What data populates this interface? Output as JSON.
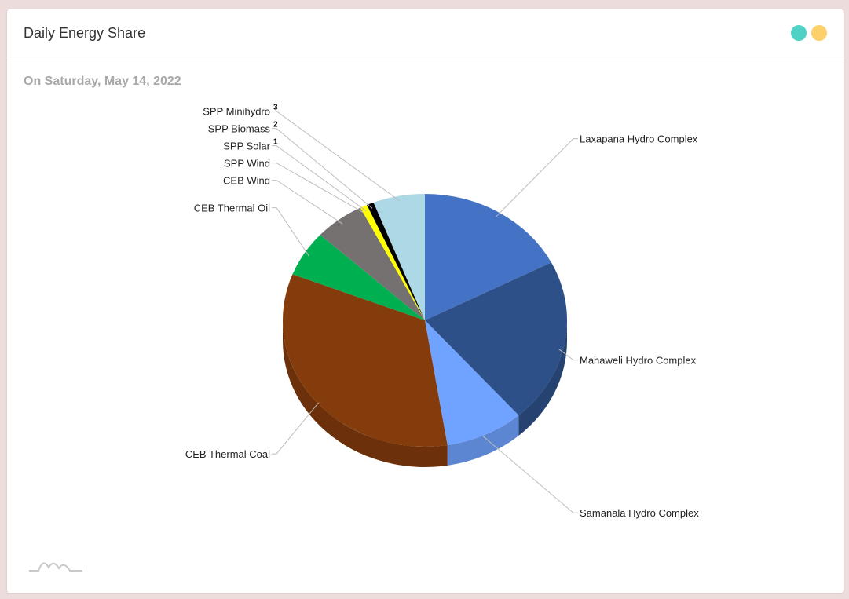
{
  "header": {
    "title": "Daily Energy Share",
    "dots": [
      {
        "name": "teal",
        "color": "#4fd1c5"
      },
      {
        "name": "amber",
        "color": "#fcd06b"
      }
    ]
  },
  "subtitle": "On Saturday, May 14, 2022",
  "logo_icon": "mountain-wave-logo-icon",
  "chart_data": {
    "type": "pie",
    "title": "",
    "start_angle_deg": 0,
    "direction": "clockwise",
    "depth_3d": true,
    "slices": [
      {
        "label": "Laxapana Hydro Complex",
        "value": 17.2,
        "color": "#4472c4",
        "side": "right",
        "footnote": ""
      },
      {
        "label": "Mahaweli Hydro Complex",
        "value": 20.8,
        "color": "#2e5089",
        "side": "right",
        "footnote": ""
      },
      {
        "label": "Samanala Hydro Complex",
        "value": 8.8,
        "color": "#70a3ff",
        "side": "right",
        "footnote": ""
      },
      {
        "label": "CEB Thermal Coal",
        "value": 33.0,
        "color": "#843c0c",
        "side": "left",
        "footnote": ""
      },
      {
        "label": "CEB Thermal Oil",
        "value": 5.8,
        "color": "#00b050",
        "side": "left",
        "footnote": ""
      },
      {
        "label": "CEB Wind",
        "value": 5.6,
        "color": "#767171",
        "side": "left",
        "footnote": ""
      },
      {
        "label": "SPP Wind",
        "value": 0.0,
        "color": "#767171",
        "side": "left",
        "footnote": ""
      },
      {
        "label": "SPP Solar",
        "value": 0.8,
        "color": "#ffff00",
        "side": "left",
        "footnote": "1"
      },
      {
        "label": "SPP Biomass",
        "value": 0.8,
        "color": "#000000",
        "side": "left",
        "footnote": "2"
      },
      {
        "label": "SPP Minihydro",
        "value": 5.8,
        "color": "#add8e6",
        "side": "left",
        "footnote": "3"
      }
    ]
  }
}
